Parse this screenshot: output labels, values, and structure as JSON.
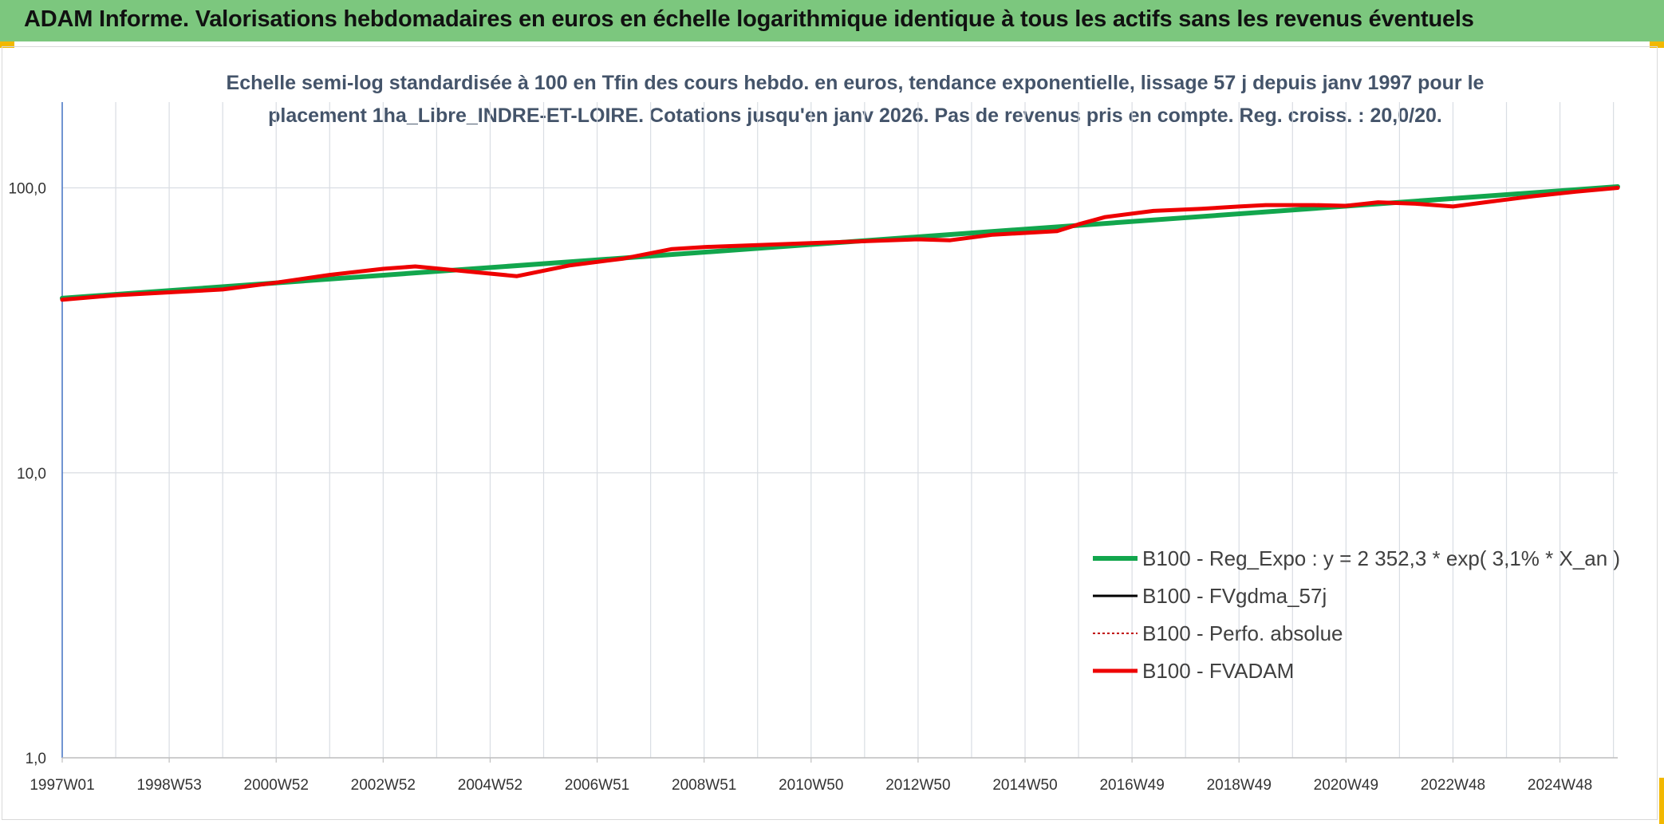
{
  "header": {
    "title": "ADAM Informe. Valorisations hebdomadaires en euros en échelle logarithmique identique à tous les actifs sans les revenus éventuels"
  },
  "colors": {
    "header_bg": "#7cc77e",
    "reg_expo": "#12a64d",
    "fvgdma": "#000000",
    "perfo": "#c00000",
    "fvadam": "#ee0000",
    "grid": "#d9dde3",
    "axis": "#4472c4"
  },
  "chart_data": {
    "type": "line",
    "title_lines": [
      "Echelle semi-log standardisée à 100 en Tfin des cours hebdo. en euros, tendance exponentielle, lissage 57 j depuis janv 1997 pour le",
      "placement 1ha_Libre_INDRE-ET-LOIRE. Cotations jusqu'en janv 2026. Pas de revenus pris en compte. Reg. croiss. : 20,0/20."
    ],
    "y_scale": "log",
    "ylim": [
      1,
      200
    ],
    "y_ticks": [
      {
        "value": 1,
        "label": "1,0"
      },
      {
        "value": 10,
        "label": "10,0"
      },
      {
        "value": 100,
        "label": "100,0"
      }
    ],
    "x_range": [
      1997.0,
      2026.08
    ],
    "x_ticks": [
      {
        "year": 1997.0,
        "label": "1997W01"
      },
      {
        "year": 1999.0,
        "label": "1998W53"
      },
      {
        "year": 2001.0,
        "label": "2000W52"
      },
      {
        "year": 2003.0,
        "label": "2002W52"
      },
      {
        "year": 2005.0,
        "label": "2004W52"
      },
      {
        "year": 2007.0,
        "label": "2006W51"
      },
      {
        "year": 2009.0,
        "label": "2008W51"
      },
      {
        "year": 2011.0,
        "label": "2010W50"
      },
      {
        "year": 2013.0,
        "label": "2012W50"
      },
      {
        "year": 2015.0,
        "label": "2014W50"
      },
      {
        "year": 2017.0,
        "label": "2016W49"
      },
      {
        "year": 2019.0,
        "label": "2018W49"
      },
      {
        "year": 2021.0,
        "label": "2020W49"
      },
      {
        "year": 2023.0,
        "label": "2022W48"
      },
      {
        "year": 2025.0,
        "label": "2024W48"
      }
    ],
    "legend_position": "right",
    "series": [
      {
        "name": "B100 - Reg_Expo : y = 2 352,3 * exp( 3,1% *  X_an )",
        "style": "reg",
        "x": [
          1997.0,
          2026.08
        ],
        "y": [
          41.0,
          101.0
        ]
      },
      {
        "name": "B100 - FVgdma_57j",
        "style": "fvgdma",
        "x": [],
        "y": []
      },
      {
        "name": "B100 - Perfo. absolue",
        "style": "perfo",
        "x": [],
        "y": []
      },
      {
        "name": "B100 - FVADAM",
        "style": "fvadam",
        "x": [
          1997.0,
          1998.0,
          1999.0,
          2000.0,
          2001.0,
          2002.0,
          2003.0,
          2003.6,
          2004.3,
          2005.5,
          2006.5,
          2007.5,
          2008.4,
          2009.0,
          2010.0,
          2011.0,
          2012.0,
          2013.0,
          2013.6,
          2014.4,
          2015.6,
          2016.0,
          2016.5,
          2017.4,
          2018.3,
          2019.0,
          2019.5,
          2020.4,
          2021.0,
          2021.6,
          2022.3,
          2023.0,
          2023.6,
          2024.5,
          2025.3,
          2026.08
        ],
        "y": [
          40.5,
          42.0,
          43.0,
          44.0,
          46.5,
          49.5,
          52.0,
          53.0,
          51.5,
          49.0,
          53.5,
          56.5,
          61.0,
          62.0,
          63.0,
          64.0,
          65.0,
          66.0,
          65.5,
          68.5,
          70.5,
          74.5,
          79.0,
          83.0,
          84.5,
          86.0,
          87.0,
          87.0,
          86.5,
          89.0,
          88.0,
          86.0,
          89.0,
          93.5,
          97.0,
          100.0
        ]
      }
    ]
  }
}
